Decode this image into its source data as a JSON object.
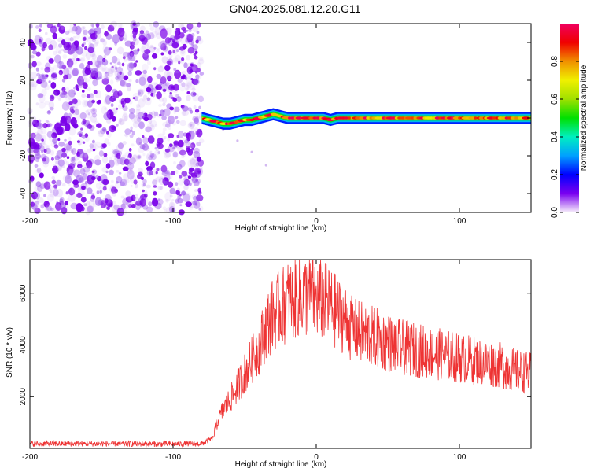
{
  "figure_title": "GN04.2025.081.12.20.G11",
  "chart_data": [
    {
      "type": "heatmap",
      "title": "GN04.2025.081.12.20.G11",
      "xlabel": "Height of straight line (km)",
      "ylabel": "Frequency (Hz)",
      "xlim": [
        -200,
        150
      ],
      "ylim": [
        -50,
        50
      ],
      "x_ticks": [
        -200,
        -100,
        0,
        100
      ],
      "y_ticks": [
        -40,
        -20,
        0,
        20,
        40
      ],
      "colorbar": {
        "label": "Normalized spectral amplitude",
        "range": [
          0,
          1
        ],
        "ticks": [
          0.0,
          0.2,
          0.4,
          0.6,
          0.8
        ],
        "colormap": [
          "#f8f0fb",
          "#7a00f0",
          "#0000ff",
          "#00a0ff",
          "#00f0c0",
          "#00e000",
          "#a0e000",
          "#f0f000",
          "#f09000",
          "#f00000",
          "#f00060"
        ]
      },
      "regions": [
        {
          "name": "noise",
          "x_range": [
            -200,
            -80
          ],
          "freq_range": [
            -50,
            50
          ],
          "amplitude": [
            0.0,
            0.15
          ]
        },
        {
          "name": "signal",
          "x_range": [
            -80,
            150
          ],
          "center_freq": 0,
          "bandwidth_hz": 4,
          "amplitude": [
            0.3,
            1.0
          ]
        }
      ],
      "signal_track": {
        "x": [
          -80,
          -75,
          -70,
          -65,
          -60,
          -55,
          -50,
          -45,
          -40,
          -35,
          -30,
          -25,
          -20,
          -15,
          -10,
          -5,
          0,
          5,
          10,
          15,
          20,
          30,
          40,
          60,
          80,
          100,
          120,
          150
        ],
        "freq": [
          0,
          -1,
          -2,
          -3,
          -3,
          -2,
          -1,
          -1,
          0,
          1,
          2,
          1,
          0,
          0,
          0,
          0,
          0,
          0,
          -1,
          0,
          0,
          0,
          0,
          0,
          0,
          0,
          0,
          0
        ]
      },
      "faint_tail": {
        "x": [
          -65,
          -55,
          -45,
          -35
        ],
        "freq": [
          -6,
          -12,
          -18,
          -25
        ]
      }
    },
    {
      "type": "line",
      "xlabel": "Height of straight line (km)",
      "ylabel": "SNR (10 * v/v)",
      "xlim": [
        -200,
        150
      ],
      "ylim": [
        0,
        7300
      ],
      "x_ticks": [
        -200,
        -100,
        0,
        100
      ],
      "y_ticks": [
        2000,
        4000,
        6000
      ],
      "color": "#ee3333",
      "x": [
        -200,
        -150,
        -100,
        -80,
        -72,
        -70,
        -65,
        -60,
        -55,
        -50,
        -45,
        -40,
        -35,
        -30,
        -25,
        -20,
        -15,
        -10,
        -5,
        0,
        5,
        10,
        15,
        20,
        25,
        30,
        40,
        50,
        60,
        70,
        80,
        90,
        100,
        110,
        120,
        130,
        140,
        150
      ],
      "y": [
        180,
        180,
        170,
        180,
        400,
        900,
        1500,
        1900,
        2400,
        2900,
        3400,
        3900,
        4700,
        5200,
        5400,
        5700,
        5800,
        5900,
        5900,
        5800,
        5700,
        5500,
        5200,
        5000,
        4600,
        4500,
        4300,
        4100,
        3900,
        3800,
        3700,
        3600,
        3500,
        3400,
        3300,
        3200,
        3000,
        2900
      ]
    }
  ]
}
